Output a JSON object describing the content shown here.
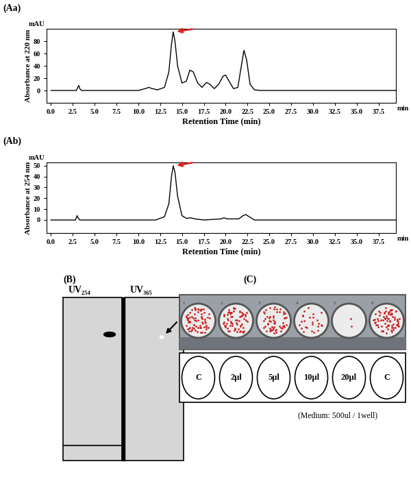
{
  "chart_data": [
    {
      "type": "line",
      "title": "(Aa)",
      "color": "#000000",
      "grid": false,
      "x_label": "Retention Time (min)",
      "y_label": "Absorbance at 220 nm",
      "x_unit": "min",
      "y_unit": "mAU",
      "x": [
        0.0,
        2.9,
        3.1,
        3.2,
        3.3,
        3.5,
        10.0,
        10.8,
        11.2,
        11.6,
        12.2,
        13.0,
        13.5,
        13.8,
        14.0,
        14.2,
        14.5,
        15.0,
        15.5,
        15.9,
        16.3,
        16.8,
        17.3,
        17.8,
        18.2,
        18.7,
        19.2,
        19.7,
        20.0,
        20.4,
        20.9,
        21.4,
        21.8,
        22.1,
        22.4,
        22.8,
        23.3,
        24.0,
        39.5
      ],
      "values": [
        0,
        0,
        6,
        8,
        3,
        0,
        0,
        3,
        5,
        3,
        1,
        5,
        30,
        75,
        95,
        80,
        40,
        12,
        15,
        33,
        30,
        12,
        5,
        13,
        10,
        3,
        10,
        23,
        25,
        15,
        3,
        5,
        40,
        65,
        50,
        10,
        1,
        0,
        0
      ],
      "xlim": [
        -0.5,
        39.5
      ],
      "xticks": [
        0.0,
        2.5,
        5.0,
        7.5,
        10.0,
        12.5,
        15.0,
        17.5,
        20.0,
        22.5,
        25.0,
        27.5,
        30.0,
        32.5,
        35.0,
        37.5
      ],
      "ylim": [
        -20,
        100
      ],
      "yticks": [
        0,
        20,
        40,
        60,
        80
      ]
    },
    {
      "type": "line",
      "title": "(Ab)",
      "color": "#000000",
      "grid": false,
      "x_label": "Retention Time (min)",
      "y_label": "Absorbance at 254 nm",
      "x_unit": "min",
      "y_unit": "mAU",
      "x": [
        0.0,
        2.8,
        3.0,
        3.1,
        3.3,
        12.0,
        13.0,
        13.5,
        13.8,
        14.0,
        14.2,
        14.5,
        15.0,
        15.5,
        16.0,
        16.5,
        17.5,
        19.5,
        19.8,
        20.2,
        21.5,
        22.0,
        22.3,
        22.7,
        23.3,
        39.5
      ],
      "values": [
        0,
        0,
        4,
        2,
        0,
        0,
        3,
        15,
        40,
        50,
        44,
        22,
        4,
        1.5,
        2,
        1,
        0,
        1,
        2,
        1,
        1,
        4,
        5,
        3,
        0,
        0
      ],
      "xlim": [
        -0.5,
        39.5
      ],
      "xticks": [
        0.0,
        2.5,
        5.0,
        7.5,
        10.0,
        12.5,
        15.0,
        17.5,
        20.0,
        22.5,
        25.0,
        27.5,
        30.0,
        32.5,
        35.0,
        37.5
      ],
      "ylim": [
        -12,
        53
      ],
      "yticks": [
        0,
        10,
        20,
        30,
        40,
        50
      ]
    }
  ],
  "panel_B": {
    "label": "(B)",
    "lanes": [
      "UV₂₅₄",
      "UV₃₆₅"
    ]
  },
  "panel_C": {
    "label": "(C)",
    "plate_numbers": [
      1,
      2,
      3,
      4,
      5,
      6
    ],
    "wells": [
      "C",
      "2μl",
      "5μl",
      "10μl",
      "20μl",
      "C"
    ],
    "note": "(Medium: 500ul / 1well)"
  }
}
